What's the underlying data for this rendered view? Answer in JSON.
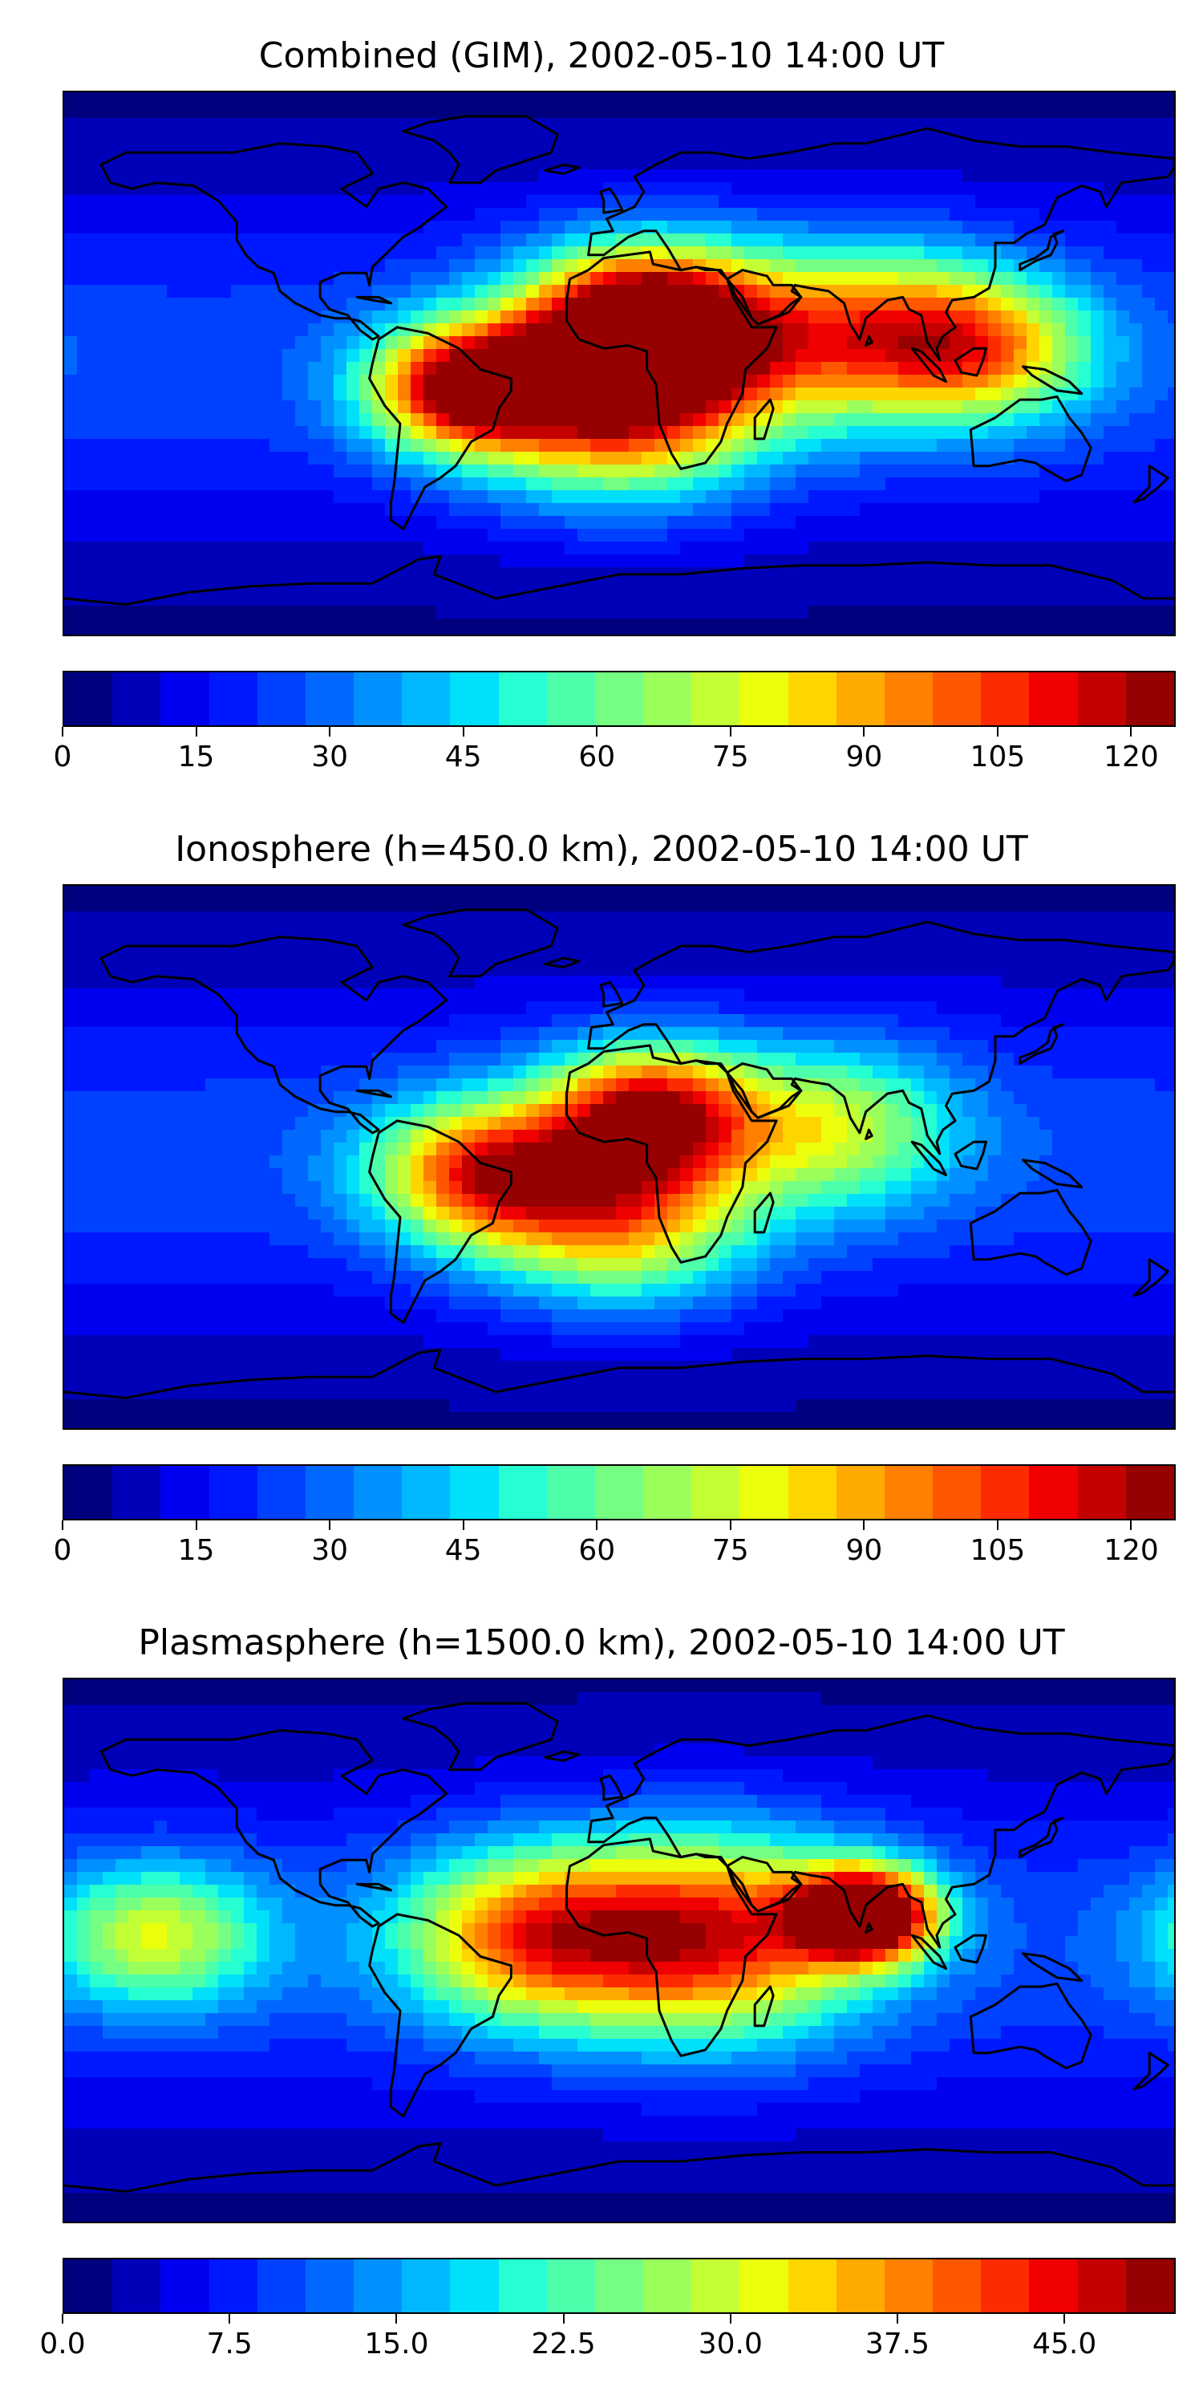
{
  "panels": [
    {
      "title": "Combined (GIM), 2002-05-10 14:00 UT",
      "colorbar": {
        "min": 0,
        "max": 125,
        "ticks": [
          "0",
          "15",
          "30",
          "45",
          "60",
          "75",
          "90",
          "105",
          "120"
        ]
      },
      "hotspots": [
        {
          "lon": 10,
          "lat": 12,
          "level": 1.0,
          "spread": 28
        },
        {
          "lon": -50,
          "lat": -8,
          "level": 0.78,
          "spread": 22
        },
        {
          "lon": 0,
          "lat": -15,
          "level": 0.62,
          "spread": 32
        },
        {
          "lon": 80,
          "lat": 10,
          "level": 0.55,
          "spread": 30
        },
        {
          "lon": 120,
          "lat": 5,
          "level": 0.45,
          "spread": 25
        }
      ]
    },
    {
      "title": "Ionosphere  (h=450.0 km), 2002-05-10 14:00 UT",
      "colorbar": {
        "min": 0,
        "max": 125,
        "ticks": [
          "0",
          "15",
          "30",
          "45",
          "60",
          "75",
          "90",
          "105",
          "120"
        ]
      },
      "hotspots": [
        {
          "lon": 10,
          "lat": 15,
          "level": 0.72,
          "spread": 24
        },
        {
          "lon": -45,
          "lat": -5,
          "level": 0.62,
          "spread": 25
        },
        {
          "lon": 0,
          "lat": -20,
          "level": 0.55,
          "spread": 30
        },
        {
          "lon": 70,
          "lat": 10,
          "level": 0.4,
          "spread": 28
        }
      ]
    },
    {
      "title": "Plasmasphere (h=1500.0 km), 2002-05-10 14:00 UT",
      "colorbar": {
        "min": 0,
        "max": 50,
        "ticks": [
          "0.0",
          "7.5",
          "15.0",
          "22.5",
          "30.0",
          "37.5",
          "45.0"
        ]
      },
      "hotspots": [
        {
          "lon": 80,
          "lat": 12,
          "level": 1.0,
          "spread": 16
        },
        {
          "lon": 30,
          "lat": 5,
          "level": 0.68,
          "spread": 35
        },
        {
          "lon": -30,
          "lat": 5,
          "level": 0.55,
          "spread": 30
        },
        {
          "lon": -150,
          "lat": 5,
          "level": 0.42,
          "spread": 25
        }
      ]
    }
  ],
  "colormap": [
    "#00007f",
    "#0000b8",
    "#0000f0",
    "#0018ff",
    "#0040ff",
    "#0068ff",
    "#0090ff",
    "#00b8ff",
    "#00e0fa",
    "#25ffd2",
    "#4dffaa",
    "#74ff83",
    "#9bff5b",
    "#c3ff34",
    "#ebff0c",
    "#ffd500",
    "#ffaa00",
    "#ff8000",
    "#ff5600",
    "#ff2b00",
    "#f00000",
    "#c40000",
    "#960000"
  ]
}
